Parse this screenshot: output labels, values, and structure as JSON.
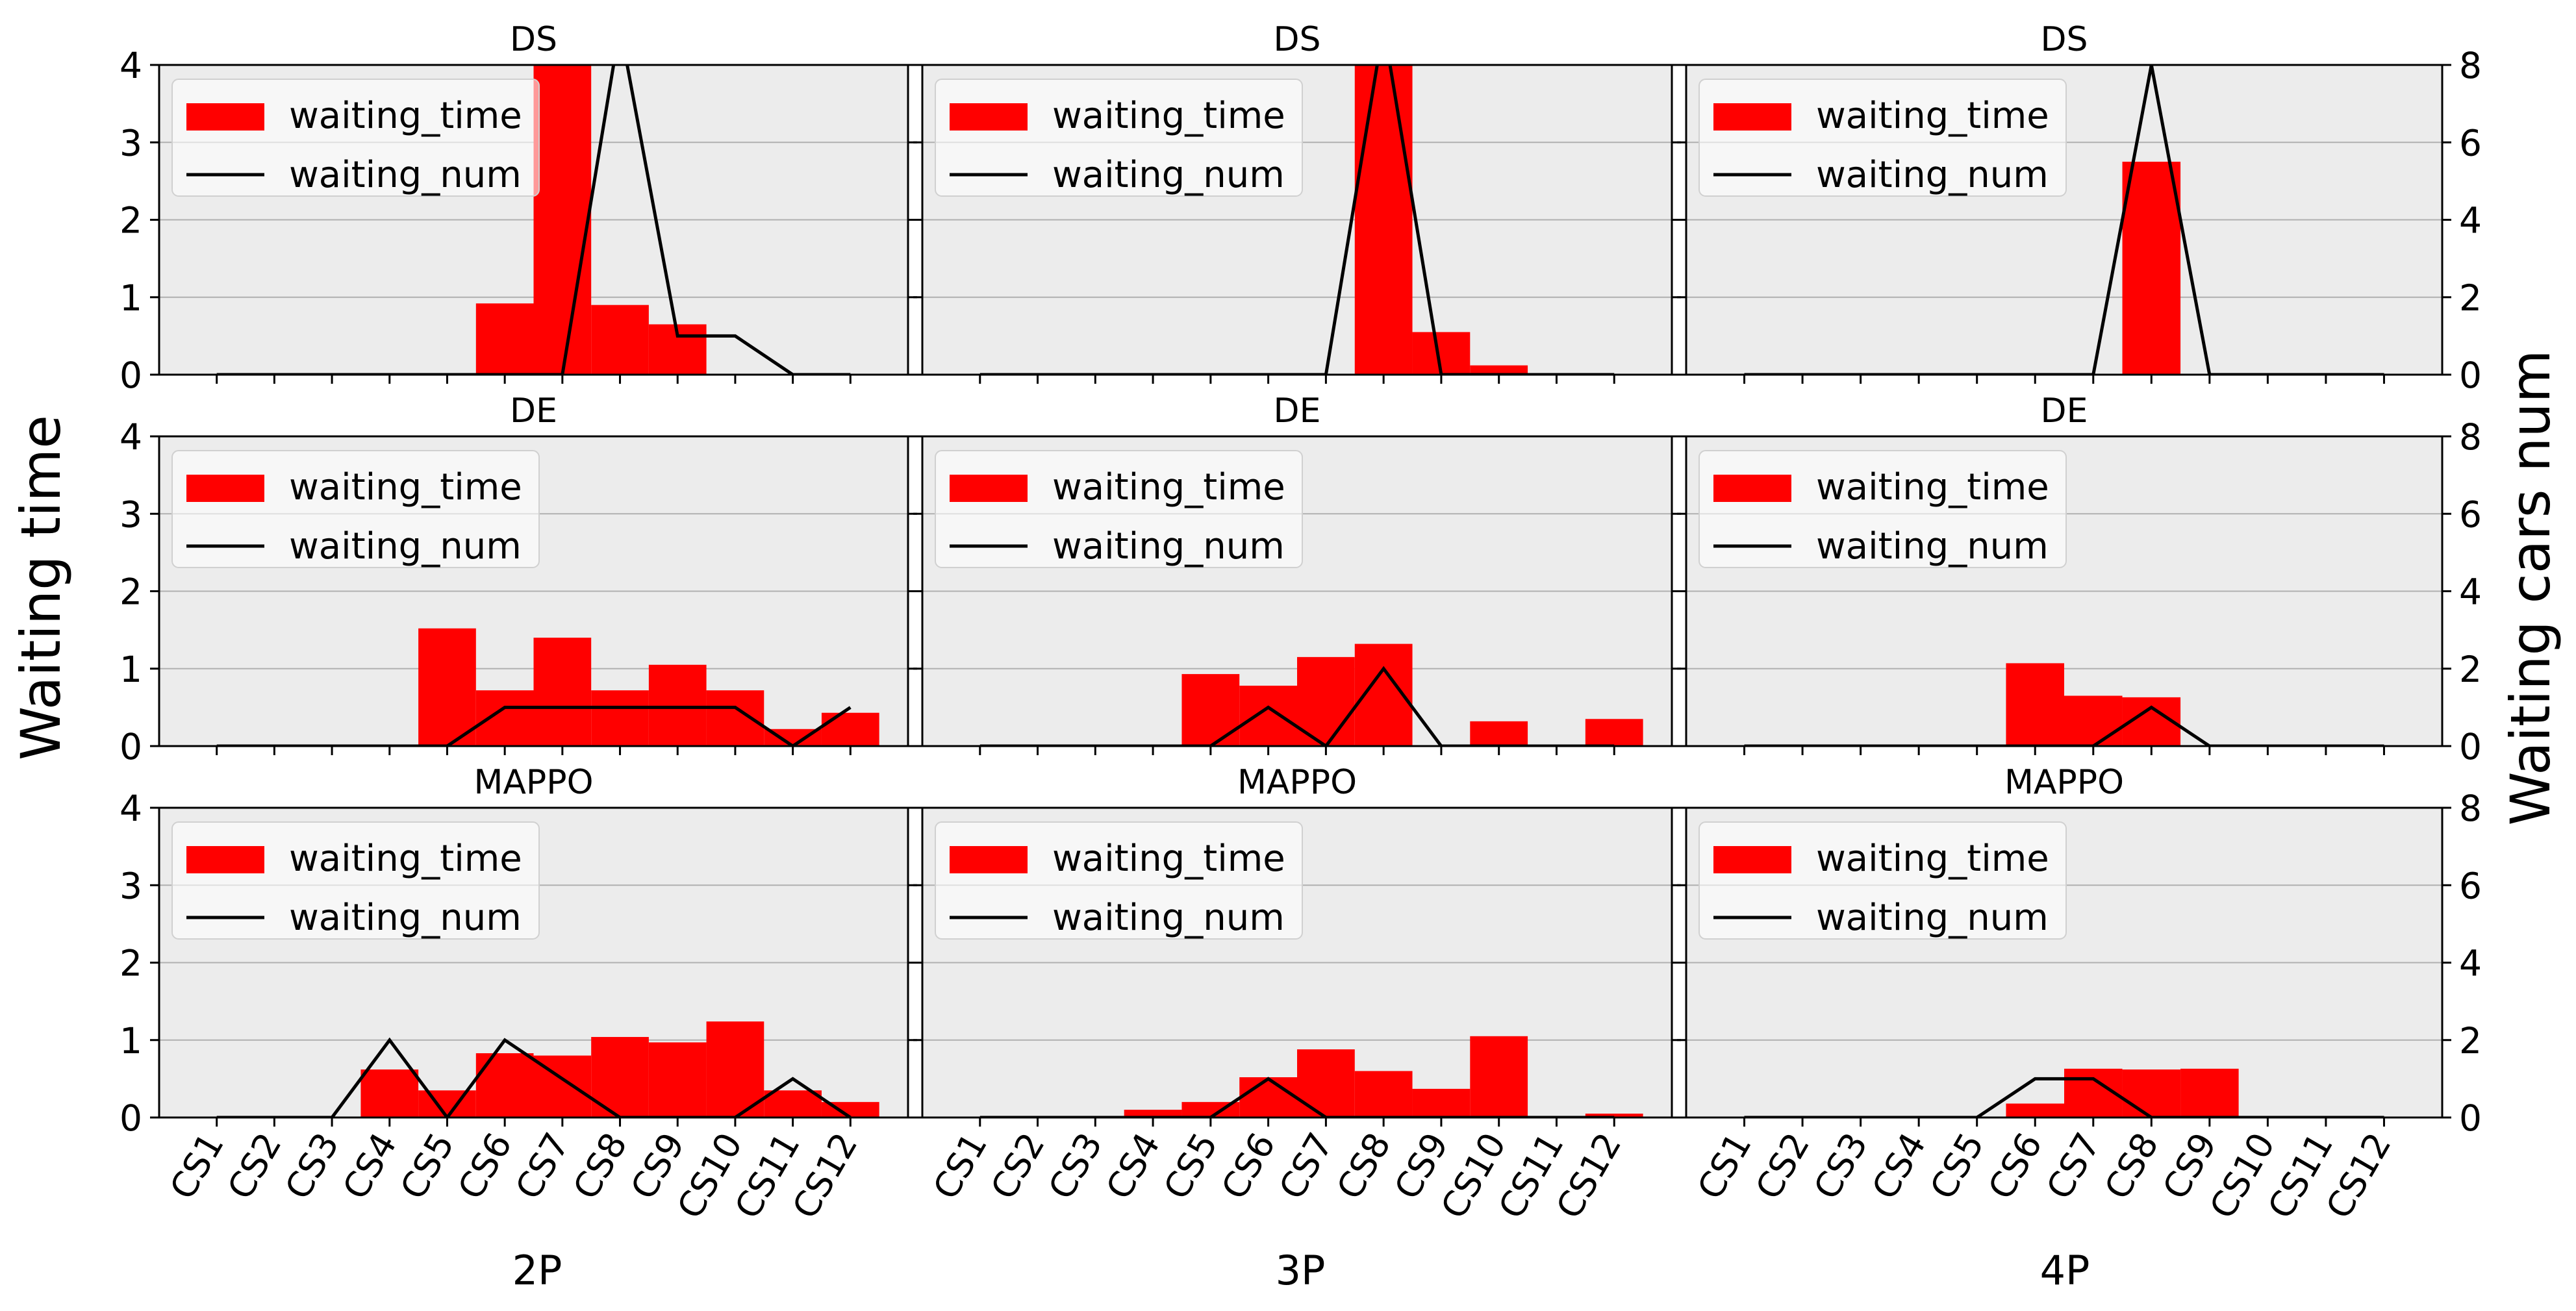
{
  "figure": {
    "ylabel_left": "Waiting time",
    "ylabel_right": "Waiting cars num",
    "column_labels": [
      "2P",
      "3P",
      "4P"
    ],
    "row_titles": [
      "DS",
      "DE",
      "MAPPO"
    ],
    "legend_labels": {
      "bar": "waiting_time",
      "line": "waiting_num"
    },
    "colors": {
      "bar": "#ff0000",
      "line": "#000000",
      "panel_bg": "#ececec",
      "grid": "#b0b0b0"
    }
  },
  "chart_data": {
    "type": "bar",
    "categories": [
      "CS1",
      "CS2",
      "CS3",
      "CS4",
      "CS5",
      "CS6",
      "CS7",
      "CS8",
      "CS9",
      "CS10",
      "CS11",
      "CS12"
    ],
    "ylim_left": [
      0,
      4
    ],
    "yticks_left": [
      0,
      1,
      2,
      3,
      4
    ],
    "ylim_right": [
      0,
      8
    ],
    "yticks_right": [
      0,
      2,
      4,
      6,
      8
    ],
    "grid": "horizontal",
    "legend_position": "top-left",
    "panels": [
      {
        "row": "DS",
        "column": "2P",
        "waiting_time": [
          0,
          0,
          0,
          0,
          0,
          0.92,
          4.5,
          0.9,
          0.65,
          0,
          0,
          0
        ],
        "waiting_num": [
          0,
          0,
          0,
          0,
          0,
          0,
          0,
          9,
          1,
          1,
          0,
          0
        ]
      },
      {
        "row": "DS",
        "column": "3P",
        "waiting_time": [
          0,
          0,
          0,
          0,
          0,
          0,
          0,
          4.5,
          0.55,
          0.12,
          0.02,
          0
        ],
        "waiting_num": [
          0,
          0,
          0,
          0,
          0,
          0,
          0,
          9,
          0,
          0,
          0,
          0
        ]
      },
      {
        "row": "DS",
        "column": "4P",
        "waiting_time": [
          0,
          0,
          0,
          0,
          0,
          0,
          0,
          2.75,
          0,
          0,
          0,
          0
        ],
        "waiting_num": [
          0,
          0,
          0,
          0,
          0,
          0,
          0,
          8,
          0,
          0,
          0,
          0
        ]
      },
      {
        "row": "DE",
        "column": "2P",
        "waiting_time": [
          0,
          0,
          0,
          0,
          1.52,
          0.72,
          1.4,
          0.72,
          1.05,
          0.72,
          0.22,
          0.43
        ],
        "waiting_num": [
          0,
          0,
          0,
          0,
          0,
          1,
          1,
          1,
          1,
          1,
          0,
          1
        ]
      },
      {
        "row": "DE",
        "column": "3P",
        "waiting_time": [
          0,
          0,
          0,
          0,
          0.93,
          0.78,
          1.15,
          1.32,
          0,
          0.32,
          0,
          0.35
        ],
        "waiting_num": [
          0,
          0,
          0,
          0,
          0,
          1,
          0,
          2,
          0,
          0,
          0,
          0
        ]
      },
      {
        "row": "DE",
        "column": "4P",
        "waiting_time": [
          0,
          0,
          0,
          0,
          0,
          1.07,
          0.65,
          0.63,
          0,
          0,
          0,
          0
        ],
        "waiting_num": [
          0,
          0,
          0,
          0,
          0,
          0,
          0,
          1,
          0,
          0,
          0,
          0
        ]
      },
      {
        "row": "MAPPO",
        "column": "2P",
        "waiting_time": [
          0,
          0,
          0,
          0.62,
          0.35,
          0.83,
          0.8,
          1.04,
          0.97,
          1.24,
          0.35,
          0.2
        ],
        "waiting_num": [
          0,
          0,
          0,
          2,
          0,
          2,
          1,
          0,
          0,
          0,
          1,
          0
        ]
      },
      {
        "row": "MAPPO",
        "column": "3P",
        "waiting_time": [
          0,
          0,
          0,
          0.1,
          0.2,
          0.52,
          0.88,
          0.6,
          0.37,
          1.05,
          0,
          0.05
        ],
        "waiting_num": [
          0,
          0,
          0,
          0,
          0,
          1,
          0,
          0,
          0,
          0,
          0,
          0
        ]
      },
      {
        "row": "MAPPO",
        "column": "4P",
        "waiting_time": [
          0,
          0,
          0,
          0,
          0,
          0.18,
          0.63,
          0.62,
          0.63,
          0,
          0,
          0
        ],
        "waiting_num": [
          0,
          0,
          0,
          0,
          0,
          1,
          1,
          0,
          0,
          0,
          0,
          0
        ]
      }
    ]
  }
}
